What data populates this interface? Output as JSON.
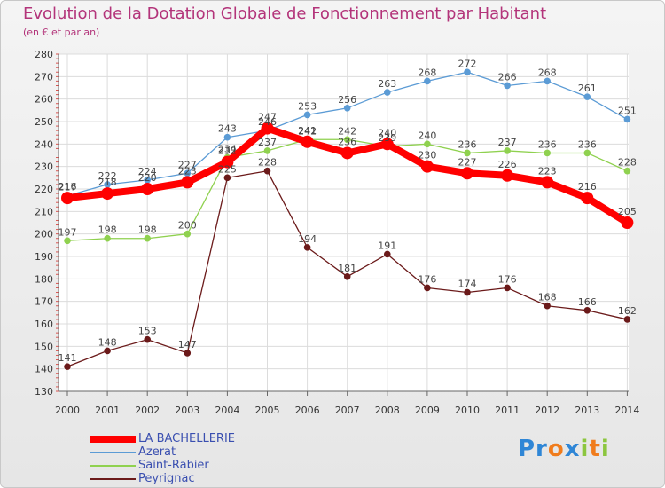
{
  "chart_data": {
    "type": "line",
    "title": "Evolution de la Dotation Globale de Fonctionnement par Habitant",
    "subtitle": "(en € et par an)",
    "xlabel": "",
    "ylabel": "",
    "ylim": [
      130,
      280
    ],
    "ytick_step": 10,
    "categories": [
      "2000",
      "2001",
      "2002",
      "2003",
      "2004",
      "2005",
      "2006",
      "2007",
      "2008",
      "2009",
      "2010",
      "2011",
      "2012",
      "2013",
      "2014"
    ],
    "series": [
      {
        "name": "LA BACHELLERIE",
        "color": "#ff0000",
        "values": [
          216,
          218,
          220,
          223,
          232,
          247,
          241,
          236,
          240,
          230,
          227,
          226,
          223,
          216,
          205
        ]
      },
      {
        "name": "Azerat",
        "color": "#5b9bd5",
        "values": [
          217,
          222,
          224,
          227,
          243,
          246,
          253,
          256,
          263,
          268,
          272,
          266,
          268,
          261,
          251
        ]
      },
      {
        "name": "Saint-Rabier",
        "color": "#8fd14f",
        "values": [
          197,
          198,
          198,
          200,
          234,
          237,
          242,
          242,
          239,
          240,
          236,
          237,
          236,
          236,
          228
        ]
      },
      {
        "name": "Peyrignac",
        "color": "#6b1a1a",
        "values": [
          141,
          148,
          153,
          147,
          225,
          228,
          194,
          181,
          191,
          176,
          174,
          176,
          168,
          166,
          162
        ]
      }
    ]
  },
  "logo": {
    "text_parts": [
      "Pr",
      "o",
      "x",
      "i",
      "t",
      "i"
    ],
    "colors": [
      "#2f86d6",
      "#f07c1c",
      "#2f86d6",
      "#8cc63f",
      "#f07c1c",
      "#8cc63f"
    ]
  }
}
